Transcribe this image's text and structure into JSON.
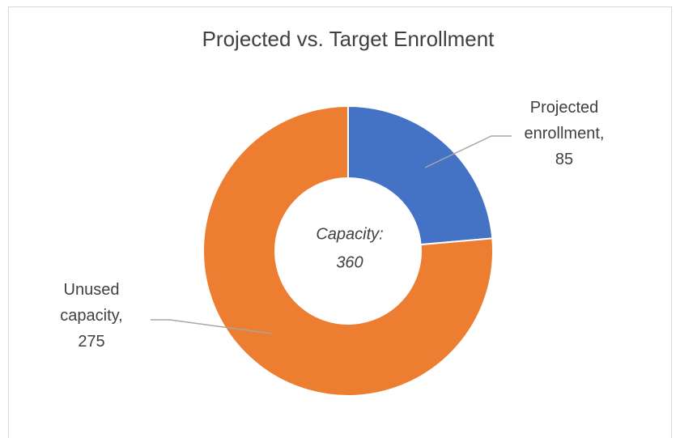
{
  "chart_data": {
    "type": "donut",
    "title": "Projected vs. Target Enrollment",
    "categories": [
      "Projected enrollment",
      "Unused capacity"
    ],
    "values": [
      85,
      275
    ],
    "colors": [
      "#4472c4",
      "#ed7d31"
    ],
    "label_separator": ",",
    "center_annotation": {
      "label": "Capacity:",
      "value": 360
    }
  }
}
